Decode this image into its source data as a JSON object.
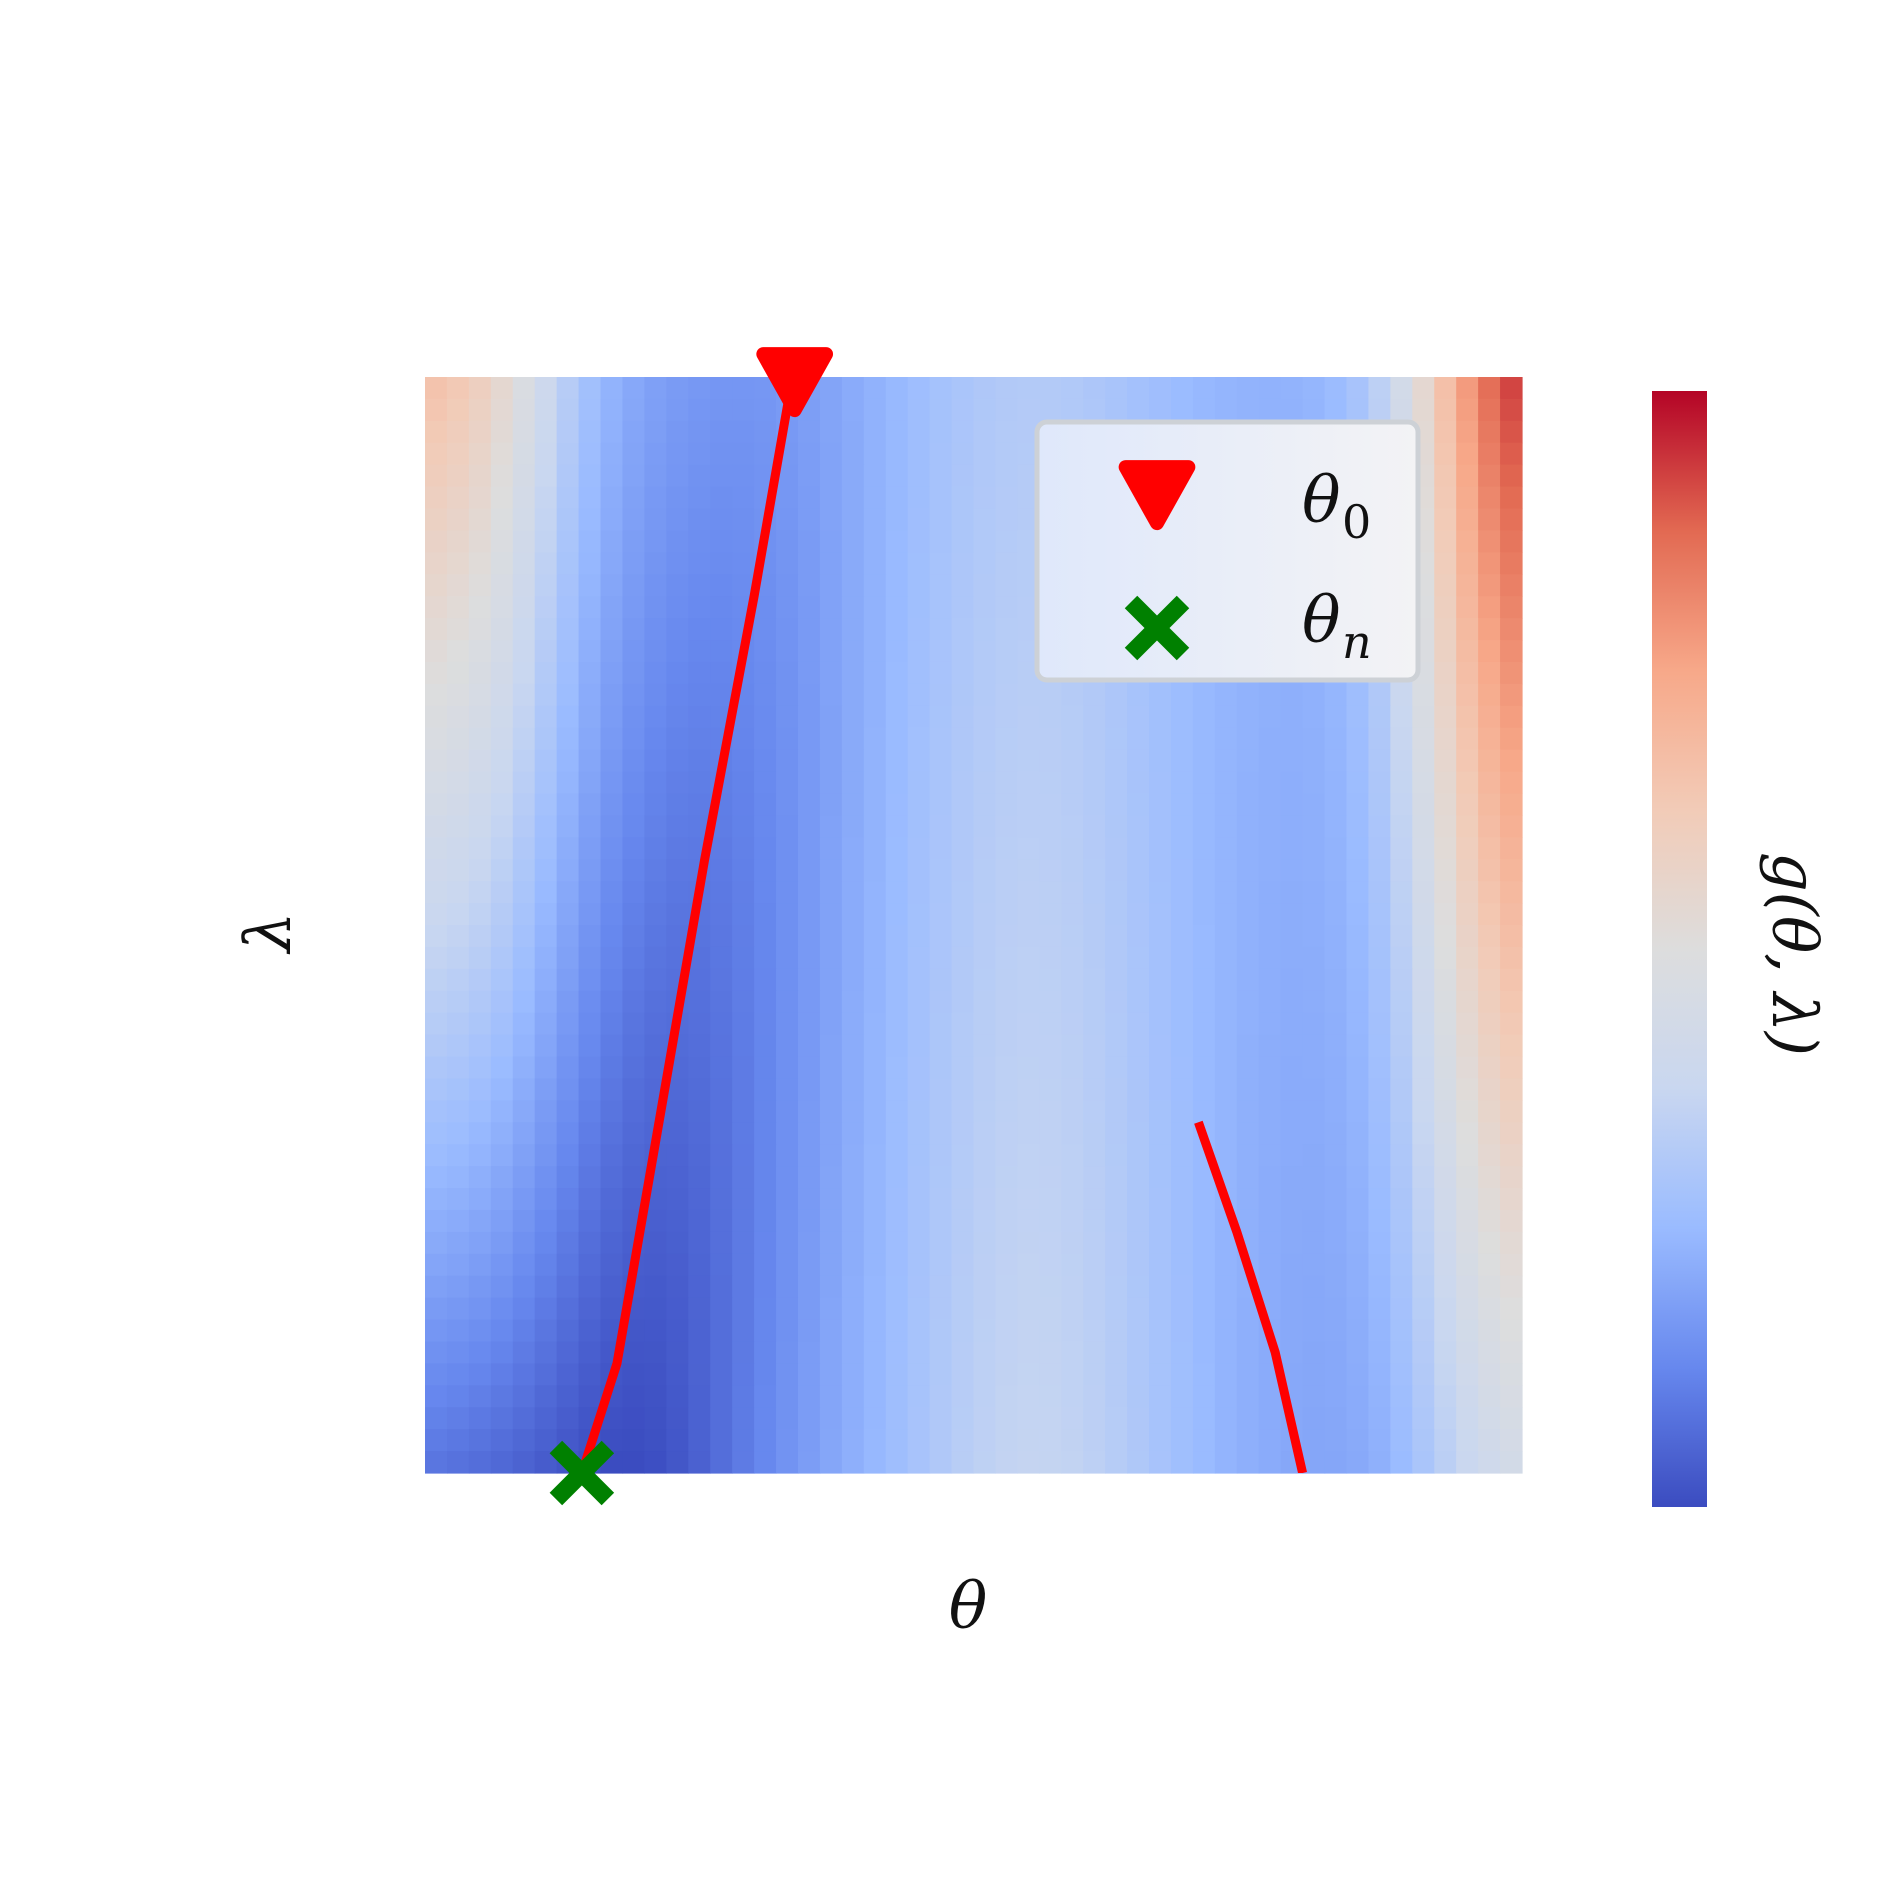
{
  "chart_data": {
    "type": "heatmap",
    "title": "",
    "xlabel": "θ",
    "ylabel": "λ",
    "colorbar_label": "g(θ, λ)",
    "colormap": "coolwarm",
    "colormap_stops": [
      "#3b4cc0",
      "#6788ee",
      "#9abbff",
      "#c9d7f0",
      "#dddddd",
      "#f2cbb7",
      "#f7a889",
      "#e26952",
      "#b40426"
    ],
    "grid": {
      "columns": 50,
      "rows": 50,
      "rows_order": "lambda top to bottom",
      "model": "value(col,row) = c0 + (c1-c0)*(col/49) + kL/(1+exp((col-midL)/widthL)) + kR/(1+exp(-(col-midR)/widthR)) - depth*exp(-((col-centerL)^2)/(2*sigmaL^2)) ; params per row interpolated top->bottom",
      "norm_range": [
        0,
        1
      ]
    },
    "heatmap_params": {
      "top": {
        "baseline": 0.2,
        "left_edge": 0.68,
        "right_edge": 1.0,
        "valley_center_col": 14,
        "valley_depth": 0.05
      },
      "bottom": {
        "baseline": 0.16,
        "left_edge": 0.1,
        "right_edge": 0.46,
        "valley_center_col": 9,
        "valley_depth": 0.16
      }
    },
    "series": [
      {
        "name": "trajectory",
        "type": "line",
        "color": "#ff0000",
        "points": [
          [
            0.335,
            0.0
          ],
          [
            0.3,
            0.2
          ],
          [
            0.255,
            0.44
          ],
          [
            0.215,
            0.67
          ],
          [
            0.175,
            0.9
          ],
          [
            0.143,
            1.0
          ]
        ]
      },
      {
        "name": "branch",
        "type": "line",
        "color": "#ff0000",
        "points": [
          [
            0.705,
            0.68
          ],
          [
            0.74,
            0.78
          ],
          [
            0.775,
            0.89
          ],
          [
            0.8,
            1.0
          ]
        ]
      }
    ],
    "markers": [
      {
        "label": "θ0",
        "label_main": "θ",
        "label_sub": "0",
        "shape": "triangle-down",
        "color": "#ff0000",
        "x": 0.337,
        "y": 0.0
      },
      {
        "label": "θn",
        "label_main": "θ",
        "label_sub": "n",
        "shape": "x",
        "color": "#008000",
        "x": 0.143,
        "y": 1.0
      }
    ],
    "legend_placement": "top-right",
    "axis_ticks": "none"
  }
}
